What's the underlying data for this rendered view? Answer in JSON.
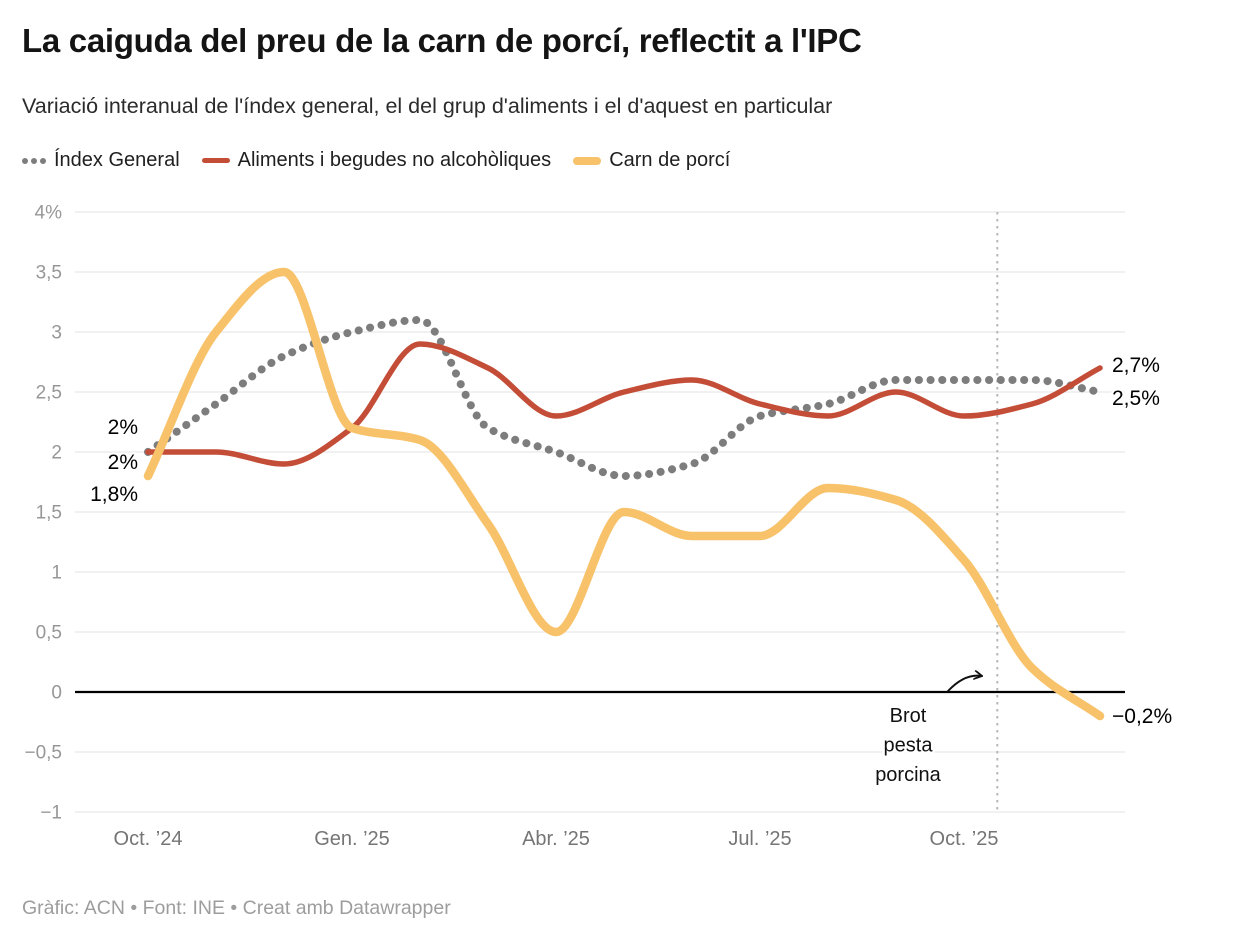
{
  "header": {
    "title": "La caiguda del preu de la carn de porcí, reflectit a l'IPC",
    "subtitle": "Variació interanual de l'índex general, el del grup d'aliments i el d'aquest en particular"
  },
  "footer": {
    "text": "Gràfic: ACN • Font: INE • Creat amb Datawrapper"
  },
  "chart_data": {
    "type": "line",
    "x": [
      "oct. 2024",
      "nov. 2024",
      "des. 2024",
      "gen. 2025",
      "febr. 2025",
      "març 2025",
      "abr. 2025",
      "maig 2025",
      "juny 2025",
      "jul. 2025",
      "ag. 2025",
      "set. 2025",
      "oct. 2025",
      "nov. 2025",
      "des. 2025"
    ],
    "x_tick_labels": [
      {
        "index": 0,
        "label": "Oct. ’24"
      },
      {
        "index": 3,
        "label": "Gen. ’25"
      },
      {
        "index": 6,
        "label": "Abr. ’25"
      },
      {
        "index": 9,
        "label": "Jul. ’25"
      },
      {
        "index": 12,
        "label": "Oct. ’25"
      }
    ],
    "y_ticks": [
      {
        "value": 4,
        "label": "4%"
      },
      {
        "value": 3.5,
        "label": "3,5"
      },
      {
        "value": 3,
        "label": "3"
      },
      {
        "value": 2.5,
        "label": "2,5"
      },
      {
        "value": 2,
        "label": "2"
      },
      {
        "value": 1.5,
        "label": "1,5"
      },
      {
        "value": 1,
        "label": "1"
      },
      {
        "value": 0.5,
        "label": "0,5"
      },
      {
        "value": 0,
        "label": "0"
      },
      {
        "value": -0.5,
        "label": "−0,5"
      },
      {
        "value": -1,
        "label": "−1"
      }
    ],
    "ylim": [
      -1,
      4
    ],
    "grid": true,
    "zero_line": true,
    "legend_position": "top",
    "series": [
      {
        "name": "Índex General",
        "style": "dotted",
        "color": "#7d7d7d",
        "width": 8,
        "values": [
          2.0,
          2.4,
          2.8,
          3.0,
          3.1,
          2.2,
          2.0,
          1.8,
          1.9,
          2.3,
          2.4,
          2.6,
          2.6,
          2.6,
          2.5
        ],
        "start_label": "2%",
        "end_label": "2,5%"
      },
      {
        "name": "Aliments i begudes no alcohòliques",
        "style": "solid",
        "color": "#c44d38",
        "width": 5.5,
        "values": [
          2.0,
          2.0,
          1.9,
          2.2,
          2.9,
          2.7,
          2.3,
          2.5,
          2.6,
          2.4,
          2.3,
          2.5,
          2.3,
          2.4,
          2.7
        ],
        "start_label": "2%",
        "end_label": "2,7%"
      },
      {
        "name": "Carn de porcí",
        "style": "solid",
        "color": "#f7c26a",
        "width": 8.5,
        "values": [
          1.8,
          3.0,
          3.5,
          2.2,
          2.1,
          1.4,
          0.5,
          1.5,
          1.3,
          1.3,
          1.7,
          1.6,
          1.1,
          0.2,
          -0.2
        ],
        "start_label": "1,8%",
        "end_label": "−0,2%"
      }
    ],
    "annotation": {
      "text": "Brot pesta porcina",
      "lines": [
        "Brot",
        "pesta",
        "porcina"
      ],
      "vline_month_position": 12.49
    }
  }
}
